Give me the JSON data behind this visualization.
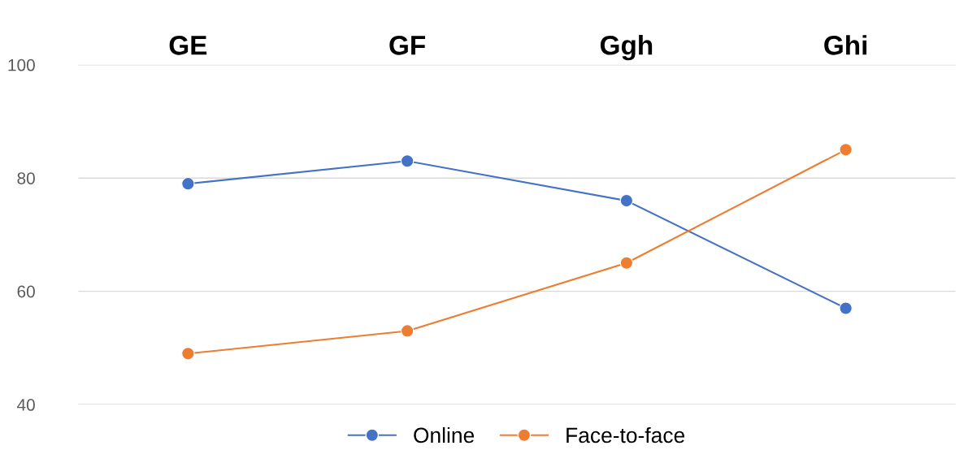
{
  "chart_data": {
    "type": "line",
    "categories": [
      "GE",
      "GF",
      "Ggh",
      "Ghi"
    ],
    "series": [
      {
        "name": "Online",
        "color": "#4472c4",
        "values": [
          79,
          83,
          76,
          57
        ]
      },
      {
        "name": "Face-to-face",
        "color": "#ed7d31",
        "values": [
          49,
          53,
          65,
          85
        ]
      }
    ],
    "ylim": [
      40,
      100
    ],
    "yticks": [
      40,
      60,
      80,
      100
    ],
    "grid": "y",
    "legend": "bottom",
    "marker": "circle",
    "line_style": "solid"
  }
}
